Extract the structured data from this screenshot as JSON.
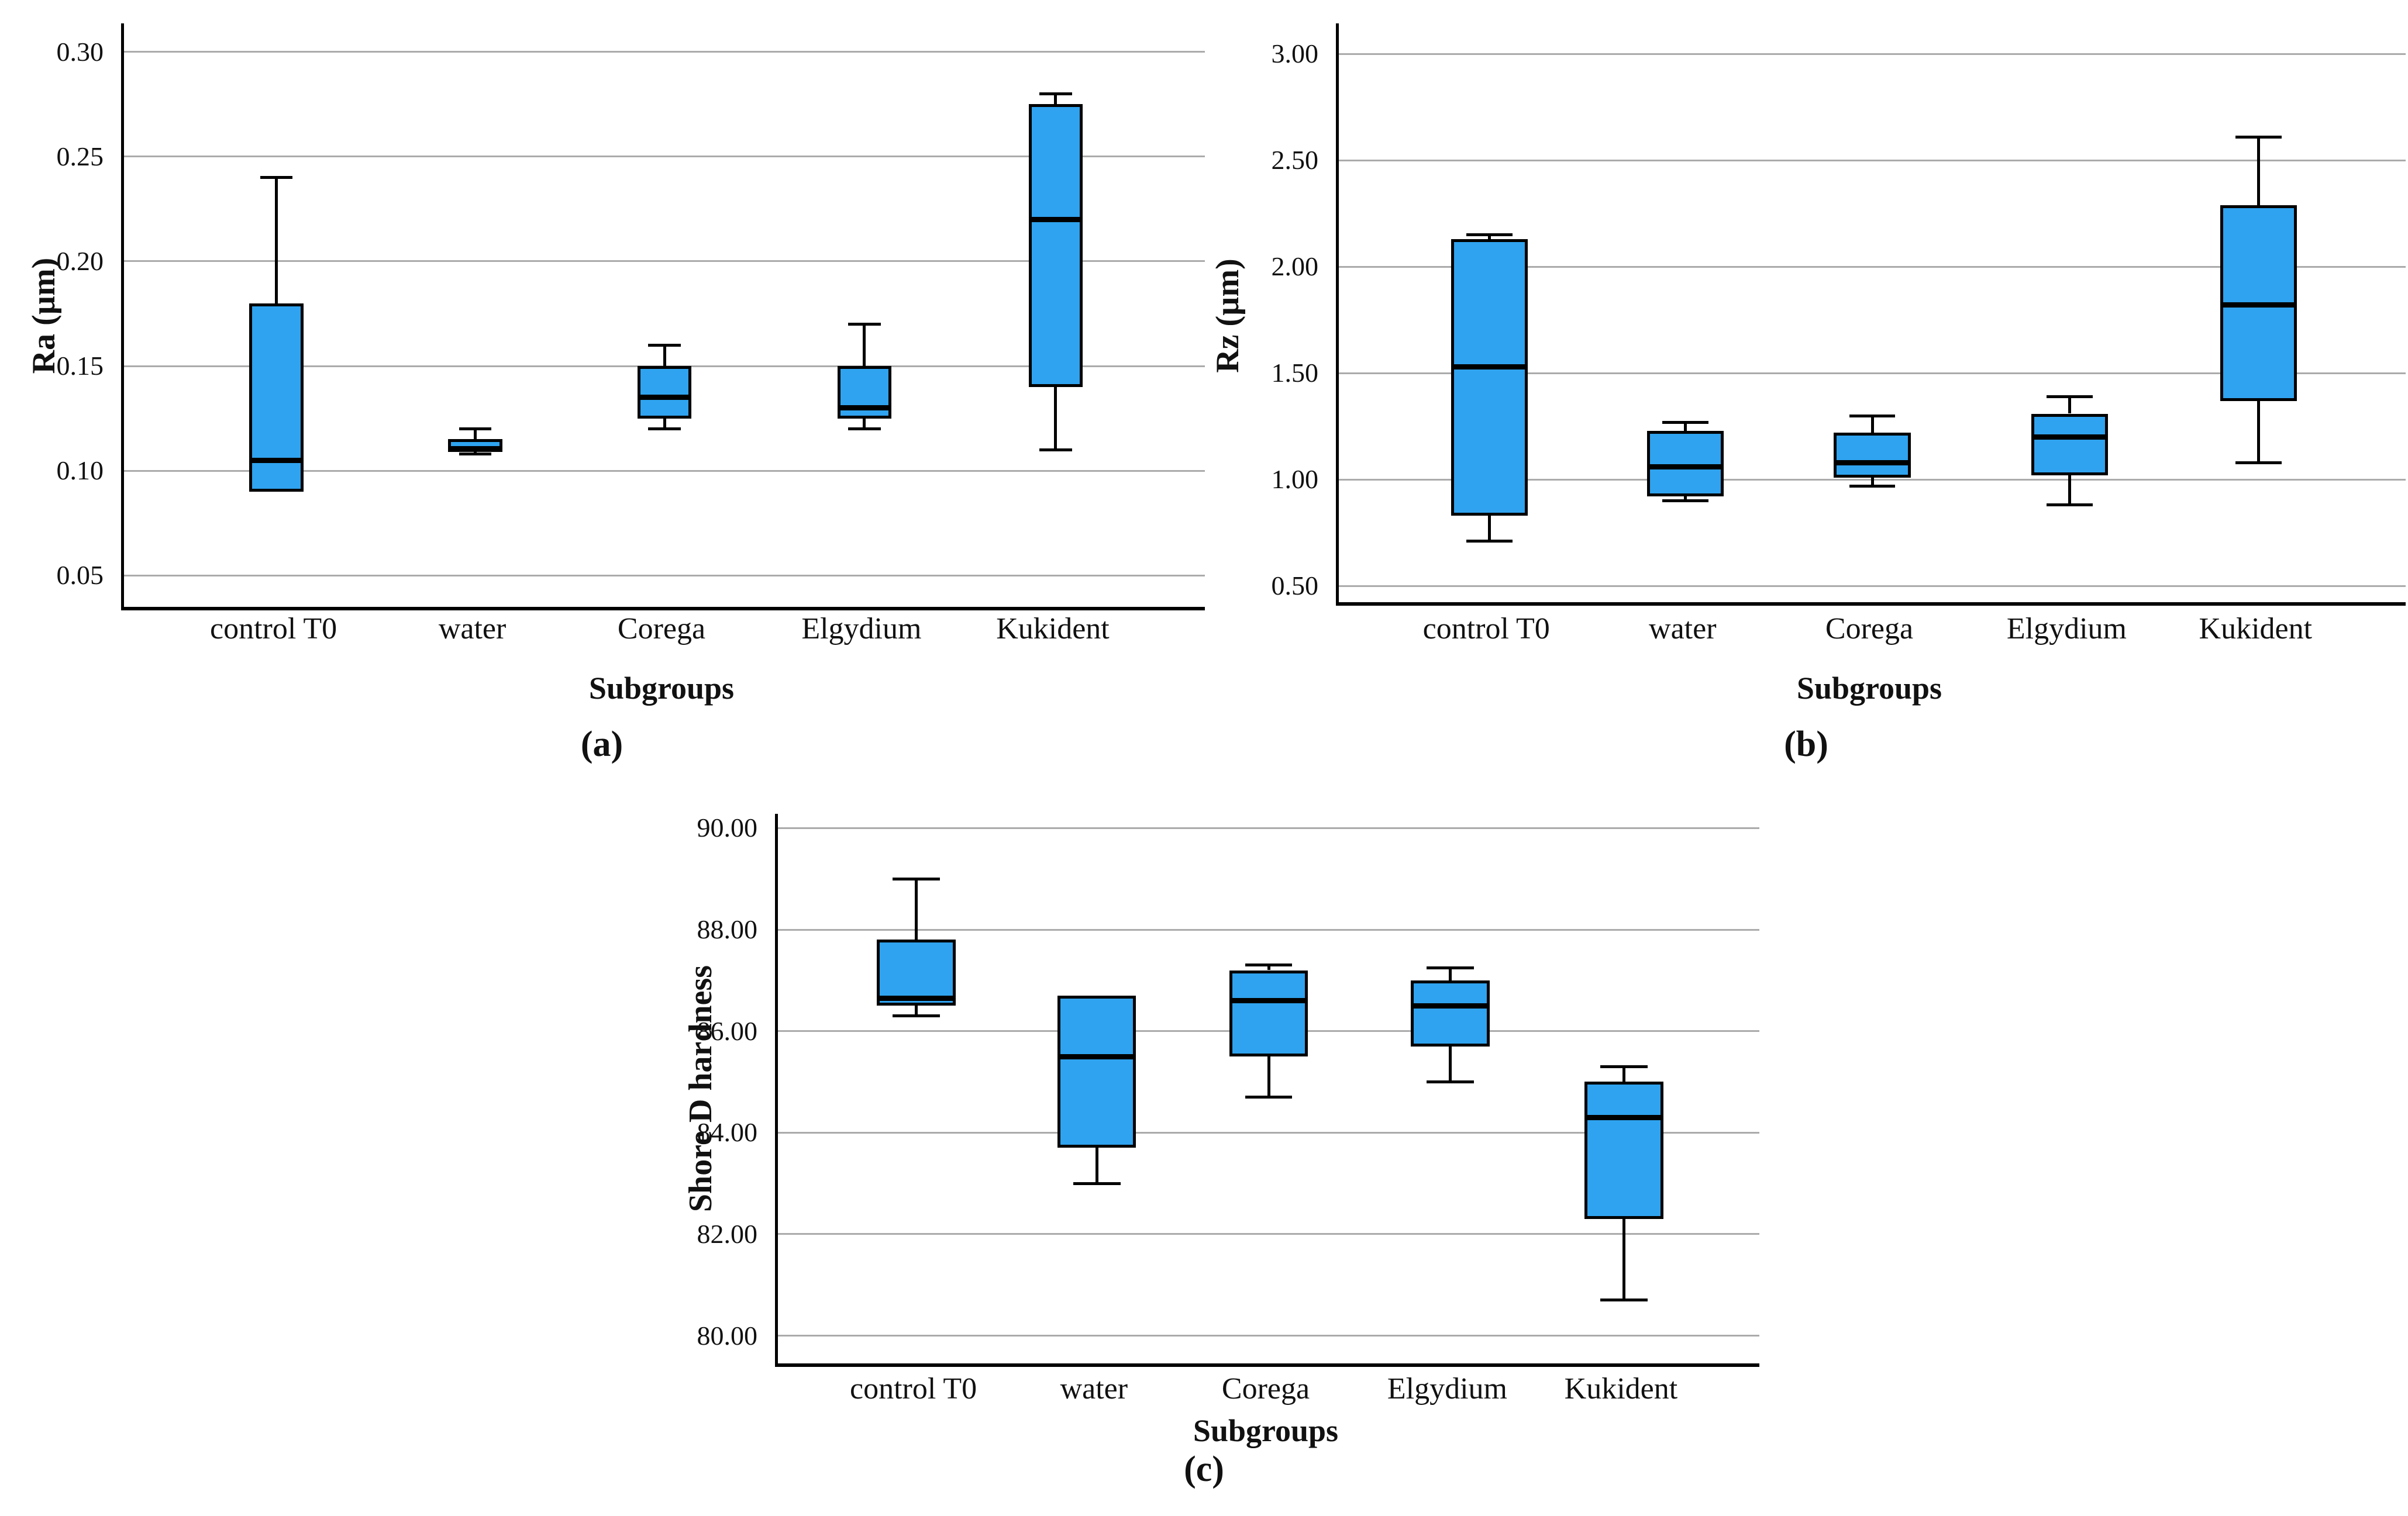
{
  "figure_type": "boxplot-figure",
  "colors": {
    "box_fill": "#2FA3EF",
    "box_border": "#000000",
    "median": "#000000",
    "whisker": "#000000",
    "gridline": "#ABABAB",
    "axis": "#000000",
    "background": "#FFFFFF"
  },
  "chart_data": [
    {
      "type": "boxplot",
      "panel_label": "(a)",
      "y_axis_title": "Ra (µm)",
      "x_axis_title": "Subgroups",
      "ylim": [
        0.03,
        0.316
      ],
      "grid": true,
      "y_tick_labels": [
        "0.30",
        "0.25",
        "0.20",
        "0.15",
        "0.10",
        "0.05"
      ],
      "y_tick_values": [
        0.3,
        0.25,
        0.2,
        0.15,
        0.1,
        0.05
      ],
      "categories": [
        "control T0",
        "water",
        "Corega",
        "Elgydium",
        "Kukident"
      ],
      "series": [
        {
          "category": "control T0",
          "min": 0.09,
          "q1": 0.09,
          "median": 0.105,
          "q3": 0.18,
          "max": 0.24
        },
        {
          "category": "water",
          "min": 0.108,
          "q1": 0.109,
          "median": 0.1105,
          "q3": 0.115,
          "max": 0.12
        },
        {
          "category": "Corega",
          "min": 0.12,
          "q1": 0.125,
          "median": 0.135,
          "q3": 0.15,
          "max": 0.16
        },
        {
          "category": "Elgydium",
          "min": 0.12,
          "q1": 0.125,
          "median": 0.13,
          "q3": 0.15,
          "max": 0.17
        },
        {
          "category": "Kukident",
          "min": 0.11,
          "q1": 0.14,
          "median": 0.22,
          "q3": 0.275,
          "max": 0.28
        }
      ]
    },
    {
      "type": "boxplot",
      "panel_label": "(b)",
      "y_axis_title": "Rz (µm)",
      "x_axis_title": "Subgroups",
      "ylim": [
        0.26,
        3.16
      ],
      "grid": true,
      "y_tick_labels": [
        "3.00",
        "2.50",
        "2.00",
        "1.50",
        "1.00",
        "0.50"
      ],
      "y_tick_values": [
        3.0,
        2.5,
        2.0,
        1.5,
        1.0,
        0.5
      ],
      "categories": [
        "control T0",
        "water",
        "Corega",
        "Elgydium",
        "Kukident"
      ],
      "series": [
        {
          "category": "control T0",
          "min": 0.71,
          "q1": 0.83,
          "median": 1.53,
          "q3": 2.13,
          "max": 2.15
        },
        {
          "category": "water",
          "min": 0.9,
          "q1": 0.92,
          "median": 1.06,
          "q3": 1.23,
          "max": 1.27
        },
        {
          "category": "Corega",
          "min": 0.97,
          "q1": 1.01,
          "median": 1.08,
          "q3": 1.22,
          "max": 1.3
        },
        {
          "category": "Elgydium",
          "min": 0.88,
          "q1": 1.02,
          "median": 1.2,
          "q3": 1.31,
          "max": 1.39
        },
        {
          "category": "Kukident",
          "min": 1.08,
          "q1": 1.37,
          "median": 1.82,
          "q3": 2.29,
          "max": 2.61
        }
      ]
    },
    {
      "type": "boxplot",
      "panel_label": "(c)",
      "y_axis_title": "Shore D hardness",
      "x_axis_title": "Subgroups",
      "ylim": [
        79.4,
        90.3
      ],
      "grid": true,
      "y_tick_labels": [
        "90.00",
        "88.00",
        "86.00",
        "84.00",
        "82.00",
        "80.00"
      ],
      "y_tick_values": [
        90.0,
        88.0,
        86.0,
        84.0,
        82.0,
        80.0
      ],
      "categories": [
        "control T0",
        "water",
        "Corega",
        "Elgydium",
        "Kukident"
      ],
      "series": [
        {
          "category": "control T0",
          "min": 86.3,
          "q1": 86.5,
          "median": 86.65,
          "q3": 87.8,
          "max": 89.0
        },
        {
          "category": "water",
          "min": 83.0,
          "q1": 83.7,
          "median": 85.5,
          "q3": 86.7,
          "max": 86.7
        },
        {
          "category": "Corega",
          "min": 84.7,
          "q1": 85.5,
          "median": 86.6,
          "q3": 87.2,
          "max": 87.3
        },
        {
          "category": "Elgydium",
          "min": 85.0,
          "q1": 85.7,
          "median": 86.5,
          "q3": 87.0,
          "max": 87.25
        },
        {
          "category": "Kukident",
          "min": 80.7,
          "q1": 82.3,
          "median": 84.3,
          "q3": 85.0,
          "max": 85.3
        }
      ]
    }
  ]
}
